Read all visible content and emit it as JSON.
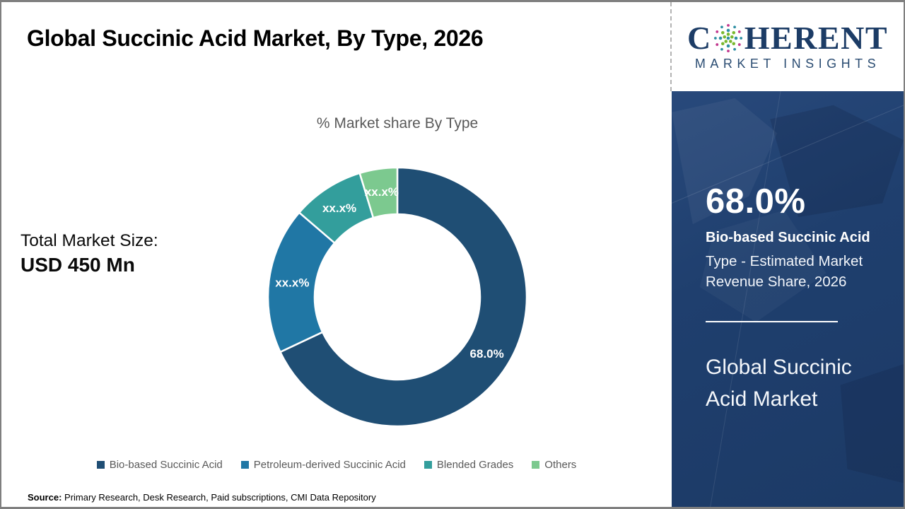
{
  "page": {
    "title": "Global Succinic Acid Market, By Type, 2026",
    "source_label": "Source:",
    "source_text": " Primary Research, Desk Research, Paid subscriptions, CMI Data Repository"
  },
  "logo": {
    "word_start": "C",
    "word_end": "HERENT",
    "subtitle": "MARKET INSIGHTS",
    "navy": "#1c3c66",
    "dot_magenta": "#c23a8f",
    "dot_teal": "#2e8fa3",
    "dot_green": "#79b82f"
  },
  "left_panel": {
    "total_label": "Total Market Size:",
    "total_value": "USD 450 Mn"
  },
  "chart_data": {
    "type": "pie",
    "subtype": "donut",
    "title": "% Market share By Type",
    "categories": [
      "Bio-based Succinic Acid",
      "Petroleum-derived Succinic Acid",
      "Blended Grades",
      "Others"
    ],
    "values": [
      68.0,
      18.3,
      9.0,
      4.7
    ],
    "labels": [
      "68.0%",
      "xx.x%",
      "xx.x%",
      "xx.x%"
    ],
    "colors": [
      "#1F4E74",
      "#2077A5",
      "#339E9C",
      "#7CC98F"
    ],
    "start_angle_deg": 0,
    "direction": "clockwise",
    "legend_position": "bottom",
    "label_color": "#ffffff"
  },
  "sidebar": {
    "stat_value": "68.0%",
    "stat_title": "Bio-based Succinic Acid",
    "stat_desc": "Type - Estimated Market Revenue Share, 2026",
    "market_name": "Global Succinic Acid Market",
    "background": "#1f3f6e"
  }
}
